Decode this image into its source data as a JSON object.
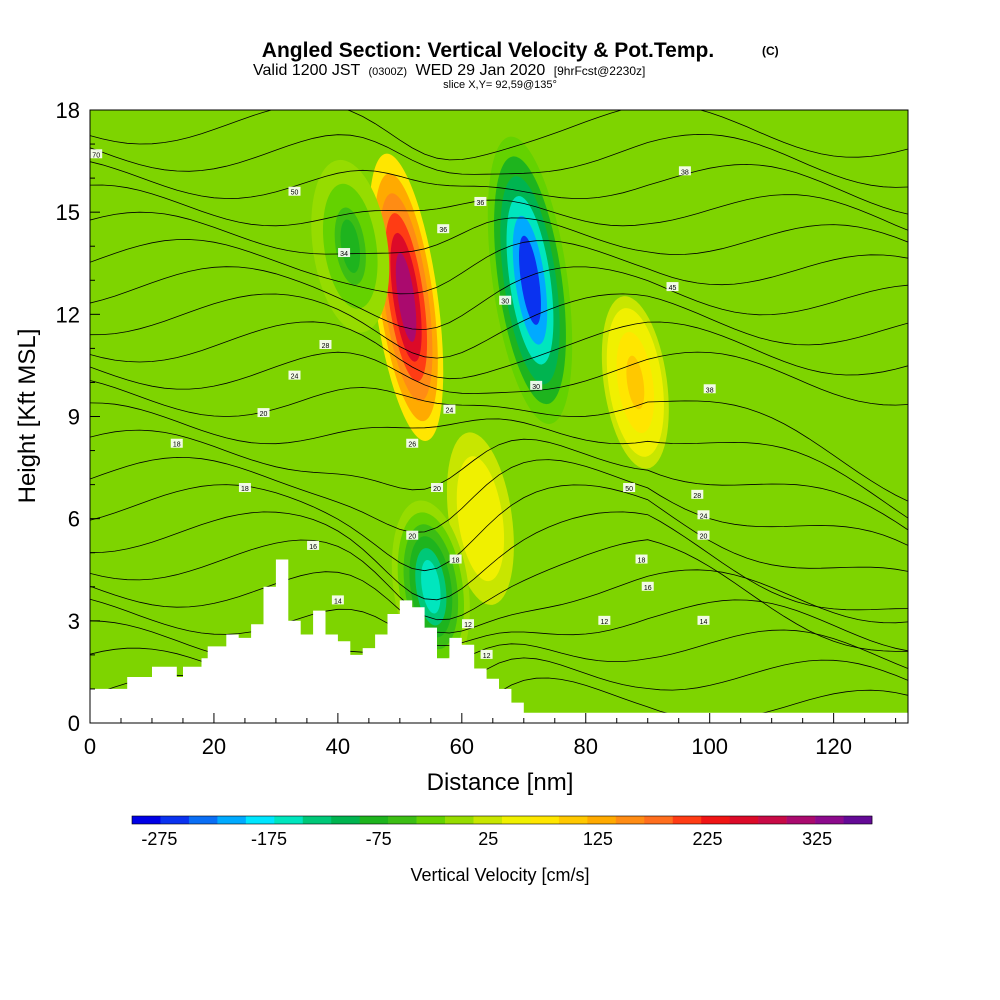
{
  "chart_data": {
    "type": "heatmap",
    "title": "Angled Section: Vertical Velocity & Pot.Temp.",
    "title_suffix": "(C)",
    "subtitle": {
      "valid": "Valid 1200 JST",
      "zulu": "(0300Z)",
      "date": "WED 29 Jan 2020",
      "fcst": "[9hrFcst@2230z]"
    },
    "slice": "slice X,Y= 92,59@135°",
    "xlabel": "Distance [nm]",
    "ylabel": "Height [Kft MSL]",
    "xlim": [
      0,
      132
    ],
    "ylim": [
      0,
      18
    ],
    "x_ticks": [
      0,
      20,
      40,
      60,
      80,
      100,
      120
    ],
    "y_ticks": [
      0,
      3,
      6,
      9,
      12,
      15,
      18
    ],
    "grid": false,
    "colorbar": {
      "label": "Vertical Velocity [cm/s]",
      "tick_labels": [
        "-275",
        "-175",
        "-75",
        "25",
        "125",
        "225",
        "325"
      ],
      "tick_values": [
        -275,
        -175,
        -75,
        25,
        125,
        225,
        325
      ],
      "range": [
        -300,
        375
      ],
      "colors": [
        "#0000e6",
        "#0a32f0",
        "#0a6ef5",
        "#00aaff",
        "#00e6ff",
        "#00e6be",
        "#00c878",
        "#00b450",
        "#1eb41e",
        "#3cbe14",
        "#64d200",
        "#96dc00",
        "#c8e600",
        "#f0f000",
        "#ffe600",
        "#ffc800",
        "#ffaa00",
        "#ff8c14",
        "#ff6e1e",
        "#ff3c14",
        "#f01414",
        "#dc0a28",
        "#c80a46",
        "#aa0a6e",
        "#8c0a8c",
        "#640a96"
      ]
    },
    "updrafts": [
      {
        "x": 51,
        "y": 12.5,
        "w_cm_s": 300
      },
      {
        "x": 88,
        "y": 10,
        "w_cm_s": 90
      },
      {
        "x": 63,
        "y": 6,
        "w_cm_s": 60
      }
    ],
    "downdrafts": [
      {
        "x": 71,
        "y": 13,
        "w_cm_s": -250
      },
      {
        "x": 55,
        "y": 4,
        "w_cm_s": -150
      },
      {
        "x": 42,
        "y": 14,
        "w_cm_s": -70
      }
    ],
    "terrain": {
      "x": [
        0,
        5,
        6,
        10,
        14,
        15,
        18,
        19,
        22,
        24,
        26,
        28,
        30,
        32,
        34,
        36,
        38,
        40,
        42,
        44,
        46,
        48,
        50,
        52,
        54,
        56,
        58,
        60,
        62,
        64,
        66,
        68,
        70,
        132
      ],
      "height_kft": [
        1.0,
        1.0,
        1.35,
        1.65,
        1.35,
        1.65,
        1.9,
        2.25,
        2.6,
        2.5,
        2.9,
        4.0,
        4.8,
        3.0,
        2.6,
        3.3,
        2.6,
        2.4,
        2.0,
        2.2,
        2.6,
        3.2,
        3.6,
        3.4,
        2.8,
        1.9,
        2.5,
        2.3,
        1.6,
        1.3,
        1.0,
        0.6,
        0.3,
        0.3
      ]
    },
    "contour_labels": [
      {
        "text": "70",
        "x": 1,
        "y": 16.7
      },
      {
        "text": "50",
        "x": 33,
        "y": 15.6
      },
      {
        "text": "36",
        "x": 63,
        "y": 15.3
      },
      {
        "text": "38",
        "x": 96,
        "y": 16.2
      },
      {
        "text": "36",
        "x": 57,
        "y": 14.5
      },
      {
        "text": "34",
        "x": 41,
        "y": 13.8
      },
      {
        "text": "30",
        "x": 67,
        "y": 12.4
      },
      {
        "text": "45",
        "x": 94,
        "y": 12.8
      },
      {
        "text": "28",
        "x": 38,
        "y": 11.1
      },
      {
        "text": "24",
        "x": 33,
        "y": 10.2
      },
      {
        "text": "30",
        "x": 72,
        "y": 9.9
      },
      {
        "text": "38",
        "x": 100,
        "y": 9.8
      },
      {
        "text": "20",
        "x": 28,
        "y": 9.1
      },
      {
        "text": "24",
        "x": 58,
        "y": 9.2
      },
      {
        "text": "18",
        "x": 14,
        "y": 8.2
      },
      {
        "text": "26",
        "x": 52,
        "y": 8.2
      },
      {
        "text": "18",
        "x": 25,
        "y": 6.9
      },
      {
        "text": "20",
        "x": 56,
        "y": 6.9
      },
      {
        "text": "50",
        "x": 87,
        "y": 6.9
      },
      {
        "text": "28",
        "x": 98,
        "y": 6.7
      },
      {
        "text": "24",
        "x": 99,
        "y": 6.1
      },
      {
        "text": "20",
        "x": 99,
        "y": 5.5
      },
      {
        "text": "16",
        "x": 36,
        "y": 5.2
      },
      {
        "text": "20",
        "x": 52,
        "y": 5.5
      },
      {
        "text": "18",
        "x": 59,
        "y": 4.8
      },
      {
        "text": "18",
        "x": 89,
        "y": 4.8
      },
      {
        "text": "16",
        "x": 90,
        "y": 4.0
      },
      {
        "text": "14",
        "x": 40,
        "y": 3.6
      },
      {
        "text": "12",
        "x": 83,
        "y": 3.0
      },
      {
        "text": "14",
        "x": 99,
        "y": 3.0
      },
      {
        "text": "12",
        "x": 61,
        "y": 2.9
      },
      {
        "text": "12",
        "x": 64,
        "y": 2.0
      }
    ]
  }
}
